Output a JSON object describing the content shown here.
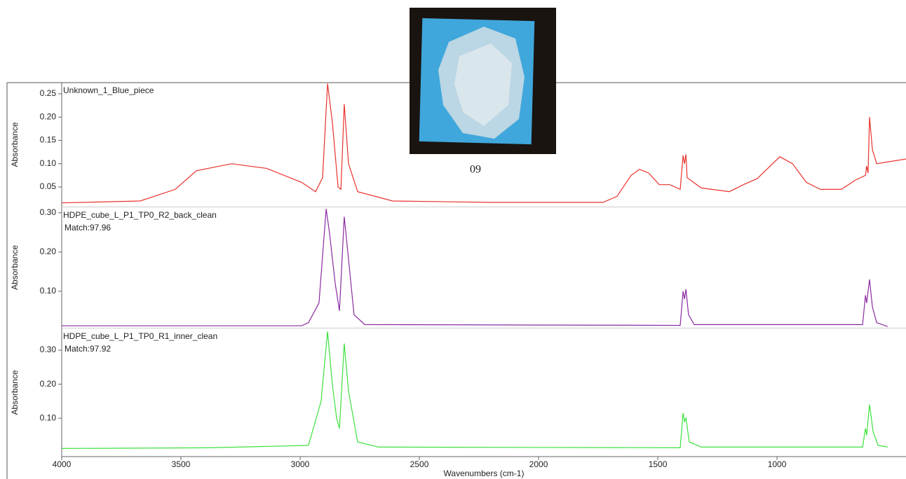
{
  "photo_caption": "09",
  "chart_data": [
    {
      "type": "line",
      "ylabel": "Absorbance",
      "xlim": [
        4000,
        459
      ],
      "ylim": [
        0.008,
        0.274
      ],
      "yticks": [
        0.05,
        {
          "value": 0.1,
          "label": "0.10"
        },
        0.15,
        {
          "value": 0.2,
          "label": "0.20"
        },
        0.25
      ],
      "x": [
        4000,
        3671,
        3524,
        3435,
        3288,
        3141,
        2994,
        2935,
        2906,
        2885,
        2865,
        2841,
        2829,
        2815,
        2797,
        2759,
        2612,
        2200,
        1730,
        1671,
        1612,
        1577,
        1538,
        1494,
        1450,
        1406,
        1394,
        1388,
        1382,
        1377,
        1318,
        1200,
        1141,
        1083,
        988,
        935,
        877,
        818,
        730,
        671,
        629,
        624,
        618,
        612,
        600,
        582,
        524,
        459
      ],
      "series": [
        {
          "name": "Unknown_1_Blue_piece",
          "color": "#e8322d",
          "values": [
            0.016,
            0.02,
            0.045,
            0.085,
            0.1,
            0.09,
            0.06,
            0.04,
            0.07,
            0.272,
            0.19,
            0.05,
            0.045,
            0.228,
            0.1,
            0.04,
            0.02,
            0.017,
            0.017,
            0.03,
            0.075,
            0.088,
            0.08,
            0.055,
            0.055,
            0.045,
            0.118,
            0.1,
            0.12,
            0.07,
            0.048,
            0.04,
            0.055,
            0.068,
            0.115,
            0.1,
            0.06,
            0.045,
            0.045,
            0.065,
            0.075,
            0.095,
            0.08,
            0.2,
            0.13,
            0.1,
            0.105,
            0.11
          ]
        }
      ]
    },
    {
      "type": "line",
      "ylabel": "Absorbance",
      "annotation": "Match:97.96",
      "xlim": [
        4000,
        459
      ],
      "ylim": [
        0.007,
        0.314
      ],
      "yticks": [
        {
          "value": 0.1,
          "label": "0.10"
        },
        {
          "value": 0.2,
          "label": "0.20"
        },
        {
          "value": 0.3,
          "label": "0.30"
        }
      ],
      "x": [
        4000,
        2994,
        2965,
        2921,
        2891,
        2877,
        2853,
        2835,
        2815,
        2800,
        2774,
        2729,
        1406,
        1394,
        1388,
        1382,
        1371,
        1347,
        641,
        629,
        624,
        612,
        600,
        582,
        536
      ],
      "series": [
        {
          "name": "HDPE_cube_L_P1_TP0_R2_back_clean",
          "color": "#8a2aa0",
          "values": [
            0.012,
            0.012,
            0.02,
            0.07,
            0.31,
            0.25,
            0.12,
            0.05,
            0.29,
            0.2,
            0.04,
            0.015,
            0.013,
            0.1,
            0.08,
            0.105,
            0.04,
            0.015,
            0.015,
            0.09,
            0.07,
            0.13,
            0.06,
            0.02,
            0.01
          ]
        }
      ]
    },
    {
      "type": "line",
      "ylabel": "Absorbance",
      "annotation": "Match:97.92",
      "xlabel": "Wavenumbers (cm-1)",
      "xlim": [
        4000,
        459
      ],
      "ylim": [
        -0.013,
        0.364
      ],
      "yticks": [
        {
          "value": 0.1,
          "label": "0.10"
        },
        {
          "value": 0.2,
          "label": "0.20"
        },
        {
          "value": 0.3,
          "label": "0.30"
        }
      ],
      "xticks": [
        4000,
        3500,
        3000,
        2500,
        2000,
        1500,
        1000
      ],
      "x": [
        4000,
        3376,
        2965,
        2912,
        2885,
        2865,
        2847,
        2835,
        2815,
        2797,
        2759,
        2671,
        1406,
        1394,
        1388,
        1382,
        1368,
        1318,
        641,
        629,
        624,
        612,
        597,
        576,
        536
      ],
      "series": [
        {
          "name": "HDPE_cube_L_P1_TP0_R1_inner_clean",
          "color": "#3de03d",
          "values": [
            0.011,
            0.013,
            0.02,
            0.15,
            0.355,
            0.2,
            0.1,
            0.07,
            0.32,
            0.18,
            0.03,
            0.015,
            0.013,
            0.115,
            0.09,
            0.1,
            0.03,
            0.015,
            0.015,
            0.07,
            0.05,
            0.14,
            0.06,
            0.02,
            0.015
          ]
        }
      ]
    }
  ]
}
